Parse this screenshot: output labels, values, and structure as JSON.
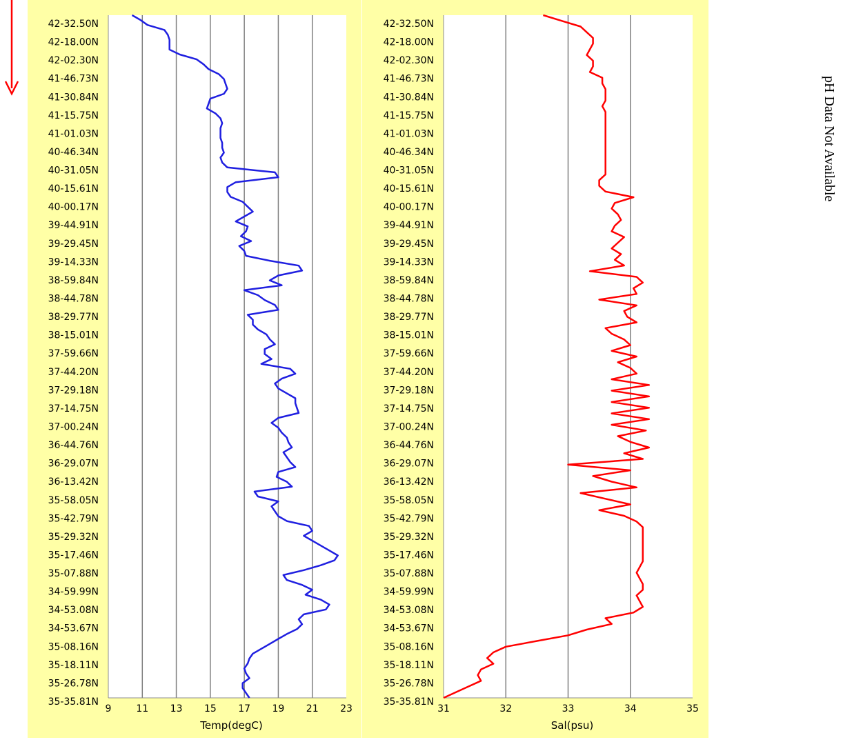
{
  "ph_note": "pH Data Not Available",
  "colors": {
    "panel_bg": "#ffffa6",
    "grid": "#7f7f7f",
    "arrow": "#ff0000"
  },
  "chart_data": [
    {
      "type": "line",
      "xlabel": "Temp(degC)",
      "xlim": [
        9,
        23
      ],
      "xticks": [
        "9",
        "11",
        "13",
        "15",
        "17",
        "19",
        "21",
        "23"
      ],
      "line_color": "#1f1fe0",
      "yticks": [
        "42-32.50N",
        "42-18.00N",
        "42-02.30N",
        "41-46.73N",
        "41-30.84N",
        "41-15.75N",
        "41-01.03N",
        "40-46.34N",
        "40-31.05N",
        "40-15.61N",
        "40-00.17N",
        "39-44.91N",
        "39-29.45N",
        "39-14.33N",
        "38-59.84N",
        "38-44.78N",
        "38-29.77N",
        "38-15.01N",
        "37-59.66N",
        "37-44.20N",
        "37-29.18N",
        "37-14.75N",
        "37-00.24N",
        "36-44.76N",
        "36-29.07N",
        "36-13.42N",
        "35-58.05N",
        "35-42.79N",
        "35-29.32N",
        "35-17.46N",
        "35-07.88N",
        "34-59.99N",
        "34-53.08N",
        "34-53.67N",
        "35-08.16N",
        "35-18.11N",
        "35-26.78N",
        "35-35.81N"
      ],
      "x": [
        10.4,
        10.9,
        11.3,
        12.3,
        12.5,
        12.6,
        12.6,
        12.6,
        13.2,
        14.2,
        14.6,
        14.9,
        15.5,
        15.8,
        15.9,
        16.0,
        15.8,
        15.0,
        14.9,
        14.8,
        15.3,
        15.6,
        15.7,
        15.6,
        15.6,
        15.6,
        15.7,
        15.7,
        15.8,
        15.6,
        15.7,
        16.0,
        18.8,
        19.0,
        16.5,
        16.0,
        16.0,
        16.2,
        16.9,
        17.2,
        17.5,
        17.0,
        16.5,
        17.2,
        17.1,
        16.8,
        17.4,
        16.7,
        17.0,
        17.1,
        18.5,
        20.2,
        20.4,
        19.0,
        18.5,
        19.2,
        17.0,
        17.8,
        18.2,
        18.8,
        19.0,
        17.2,
        17.5,
        17.5,
        17.8,
        18.3,
        18.5,
        18.8,
        18.2,
        18.2,
        18.6,
        18.0,
        19.7,
        20.0,
        19.2,
        18.8,
        19.0,
        19.5,
        20.0,
        20.0,
        20.1,
        20.2,
        19.0,
        18.6,
        19.0,
        19.2,
        19.5,
        19.6,
        19.8,
        19.3,
        19.5,
        19.7,
        20.0,
        19.0,
        18.9,
        19.5,
        19.8,
        17.6,
        17.8,
        19.0,
        18.6,
        18.8,
        19.0,
        19.5,
        20.8,
        21.0,
        20.5,
        21.0,
        21.5,
        22.0,
        22.5,
        22.3,
        21.5,
        20.5,
        19.3,
        19.5,
        20.4,
        21.0,
        20.6,
        21.5,
        22.0,
        21.8,
        20.5,
        20.2,
        20.4,
        20.1,
        19.5,
        19.0,
        18.5,
        18.0,
        17.5,
        17.3,
        17.2,
        17.0,
        17.1,
        17.3,
        16.9,
        16.9,
        17.1,
        17.3
      ]
    },
    {
      "type": "line",
      "xlabel": "Sal(psu)",
      "xlim": [
        31,
        35
      ],
      "xticks": [
        "31",
        "32",
        "33",
        "34",
        "35"
      ],
      "line_color": "#ff0000",
      "yticks": [
        "42-32.50N",
        "42-18.00N",
        "42-02.30N",
        "41-46.73N",
        "41-30.84N",
        "41-15.75N",
        "41-01.03N",
        "40-46.34N",
        "40-31.05N",
        "40-15.61N",
        "40-00.17N",
        "39-44.91N",
        "39-29.45N",
        "39-14.33N",
        "38-59.84N",
        "38-44.78N",
        "38-29.77N",
        "38-15.01N",
        "37-59.66N",
        "37-44.20N",
        "37-29.18N",
        "37-14.75N",
        "37-00.24N",
        "36-44.76N",
        "36-29.07N",
        "36-13.42N",
        "35-58.05N",
        "35-42.79N",
        "35-29.32N",
        "35-17.46N",
        "35-07.88N",
        "34-59.99N",
        "34-53.08N",
        "34-53.67N",
        "35-08.16N",
        "35-18.11N",
        "35-26.78N",
        "35-35.81N"
      ],
      "x": [
        32.6,
        32.9,
        33.2,
        33.3,
        33.4,
        33.4,
        33.35,
        33.3,
        33.4,
        33.4,
        33.35,
        33.55,
        33.55,
        33.6,
        33.6,
        33.6,
        33.55,
        33.6,
        33.6,
        33.6,
        33.6,
        33.6,
        33.6,
        33.6,
        33.6,
        33.6,
        33.6,
        33.6,
        33.6,
        33.5,
        33.5,
        33.6,
        34.05,
        33.75,
        33.7,
        33.8,
        33.85,
        33.75,
        33.7,
        33.9,
        33.8,
        33.7,
        33.85,
        33.75,
        33.9,
        33.35,
        34.1,
        34.2,
        34.05,
        34.1,
        33.5,
        34.1,
        33.9,
        33.95,
        34.1,
        33.6,
        33.7,
        33.9,
        34.0,
        33.7,
        34.1,
        33.8,
        34.0,
        34.1,
        33.7,
        34.3,
        33.7,
        34.3,
        33.7,
        34.3,
        33.7,
        34.3,
        33.7,
        34.25,
        33.8,
        34.0,
        34.3,
        33.9,
        34.2,
        33.0,
        34.0,
        33.4,
        33.7,
        34.1,
        33.2,
        33.6,
        34.0,
        33.5,
        33.9,
        34.1,
        34.2,
        34.2,
        34.2,
        34.2,
        34.2,
        34.2,
        34.2,
        34.15,
        34.1,
        34.15,
        34.2,
        34.2,
        34.1,
        34.15,
        34.2,
        34.05,
        33.6,
        33.7,
        33.3,
        33.0,
        32.5,
        32.0,
        31.8,
        31.7,
        31.8,
        31.6,
        31.55,
        31.6,
        31.4,
        31.2,
        31.0
      ]
    }
  ]
}
